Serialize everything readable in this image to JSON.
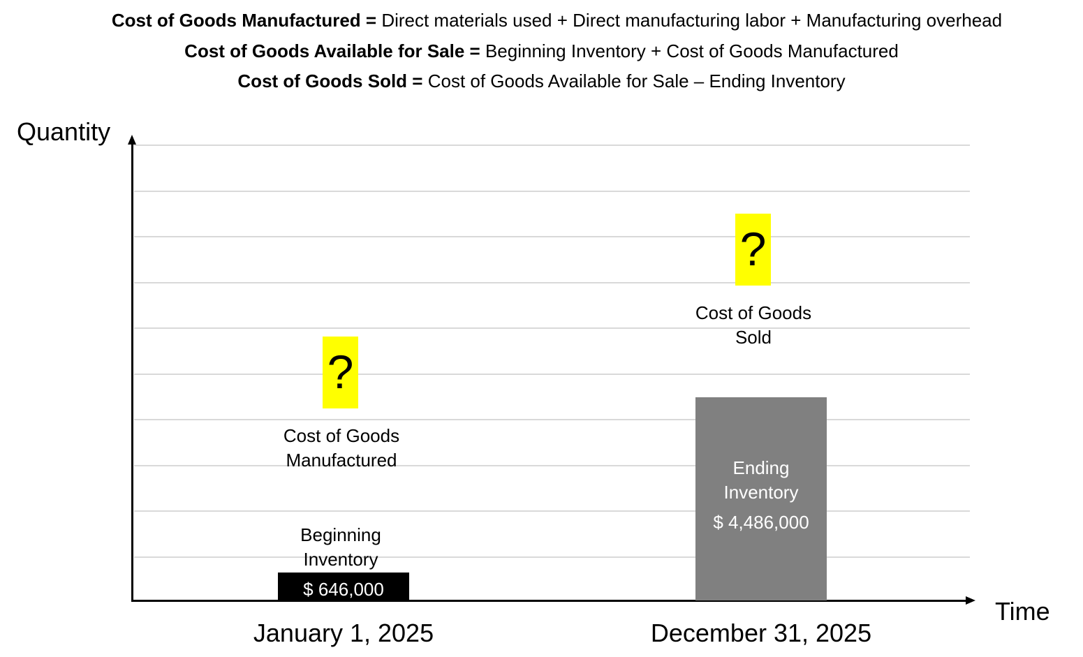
{
  "formulas": [
    {
      "term": "Cost of Goods Manufactured =",
      "expression": "Direct materials used + Direct manufacturing labor + Manufacturing overhead"
    },
    {
      "term": "Cost of Goods Available  for Sale =",
      "expression": "Beginning Inventory  + Cost of Goods Manufactured"
    },
    {
      "term": "Cost of Goods Sold =",
      "expression": "Cost of Goods Available for Sale – Ending Inventory"
    }
  ],
  "axes": {
    "y_label": "Quantity",
    "x_label": "Time",
    "gridline_count": 10
  },
  "dates": {
    "start": "January 1, 2025",
    "end": "December 31, 2025"
  },
  "beginning_inventory": {
    "caption_line1": "Beginning",
    "caption_line2": "Inventory",
    "value_label": "$ 646,000",
    "value": 646000,
    "color": "#000000"
  },
  "cost_of_goods_manufactured": {
    "caption_line1": "Cost of Goods",
    "caption_line2": "Manufactured",
    "unknown_symbol": "?",
    "highlight_color": "#ffff00"
  },
  "cost_of_goods_sold": {
    "caption_line1": "Cost of Goods",
    "caption_line2": "Sold",
    "unknown_symbol": "?",
    "highlight_color": "#ffff00"
  },
  "ending_inventory": {
    "caption_line1": "Ending",
    "caption_line2": "Inventory",
    "value_label": "$ 4,486,000",
    "value": 4486000,
    "color": "#808080"
  },
  "colors": {
    "grid": "#d9d9d9",
    "axis": "#000000",
    "bar_text": "#ffffff"
  }
}
